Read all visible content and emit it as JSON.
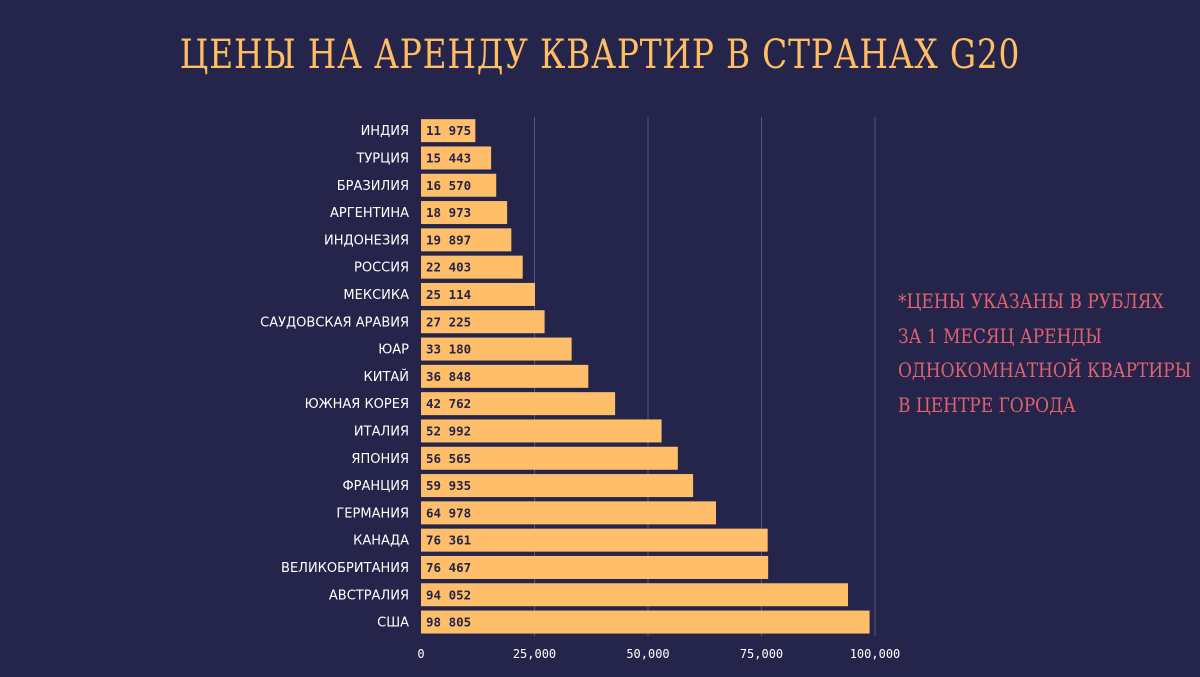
{
  "title": "ЦЕНЫ НА АРЕНДУ КВАРТИР В СТРАНАХ G20",
  "note_lines": [
    "*ЦЕНЫ УКАЗАНЫ В РУБЛЯХ",
    "ЗА 1 МЕСЯЦ АРЕНДЫ",
    "ОДНОКОМНАТНОЙ КВАРТИРЫ",
    "В ЦЕНТРЕ ГОРОДА"
  ],
  "colors": {
    "background": "#25244a",
    "bar": "#ffbe6a",
    "title": "#ffbe63",
    "note": "#e0626f"
  },
  "chart_data": {
    "type": "bar",
    "orientation": "horizontal",
    "title": "ЦЕНЫ НА АРЕНДУ КВАРТИР В СТРАНАХ G20",
    "xlim": [
      0,
      100000
    ],
    "grid": true,
    "x_ticks": [
      0,
      25000,
      50000,
      75000,
      100000
    ],
    "x_tick_labels": [
      "0",
      "25,000",
      "50,000",
      "75,000",
      "100,000"
    ],
    "categories": [
      "ИНДИЯ",
      "ТУРЦИЯ",
      "БРАЗИЛИЯ",
      "АРГЕНТИНА",
      "ИНДОНЕЗИЯ",
      "РОССИЯ",
      "МЕКСИКА",
      "САУДОВСКАЯ АРАВИЯ",
      "ЮАР",
      "КИТАЙ",
      "ЮЖНАЯ КОРЕЯ",
      "ИТАЛИЯ",
      "ЯПОНИЯ",
      "ФРАНЦИЯ",
      "ГЕРМАНИЯ",
      "КАНАДА",
      "ВЕЛИКОБРИТАНИЯ",
      "АВСТРАЛИЯ",
      "США"
    ],
    "values": [
      11975,
      15443,
      16570,
      18973,
      19897,
      22403,
      25114,
      27225,
      33180,
      36848,
      42762,
      52992,
      56565,
      59935,
      64978,
      76361,
      76467,
      94052,
      98805
    ],
    "value_labels": [
      "11 975",
      "15 443",
      "16 570",
      "18 973",
      "19 897",
      "22 403",
      "25 114",
      "27 225",
      "33 180",
      "36 848",
      "42 762",
      "52 992",
      "56 565",
      "59 935",
      "64 978",
      "76 361",
      "76 467",
      "94 052",
      "98 805"
    ]
  }
}
